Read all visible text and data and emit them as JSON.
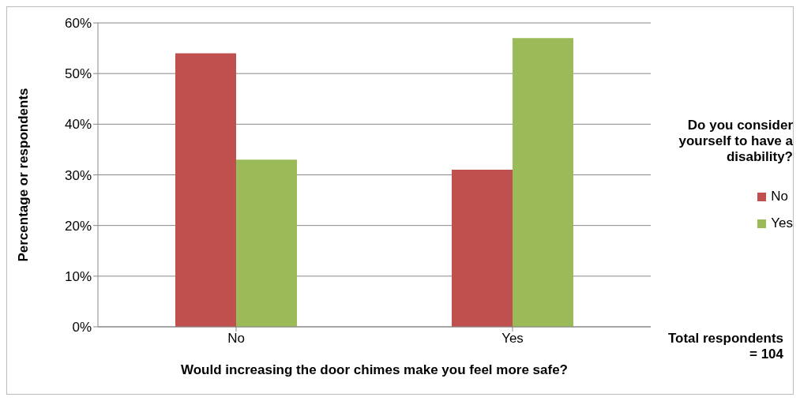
{
  "chart_data": {
    "type": "bar",
    "xlabel": "Would increasing the door chimes make you feel more safe?",
    "ylabel": "Percentage or respondents",
    "legend_title": "Do you consider yourself to have a disability?",
    "categories": [
      "No",
      "Yes"
    ],
    "series": [
      {
        "name": "No",
        "color": "#c0504d",
        "values": [
          54,
          31
        ]
      },
      {
        "name": "Yes",
        "color": "#9bbb59",
        "values": [
          33,
          57
        ]
      }
    ],
    "ylim": [
      0,
      60
    ],
    "yticks": [
      {
        "value": 0,
        "label": "0%"
      },
      {
        "value": 10,
        "label": "10%"
      },
      {
        "value": 20,
        "label": "20%"
      },
      {
        "value": 30,
        "label": "30%"
      },
      {
        "value": 40,
        "label": "40%"
      },
      {
        "value": 50,
        "label": "50%"
      },
      {
        "value": 60,
        "label": "60%"
      }
    ],
    "grid": "y",
    "legend": "right",
    "annotations": [
      "Total respondents = 104"
    ]
  }
}
